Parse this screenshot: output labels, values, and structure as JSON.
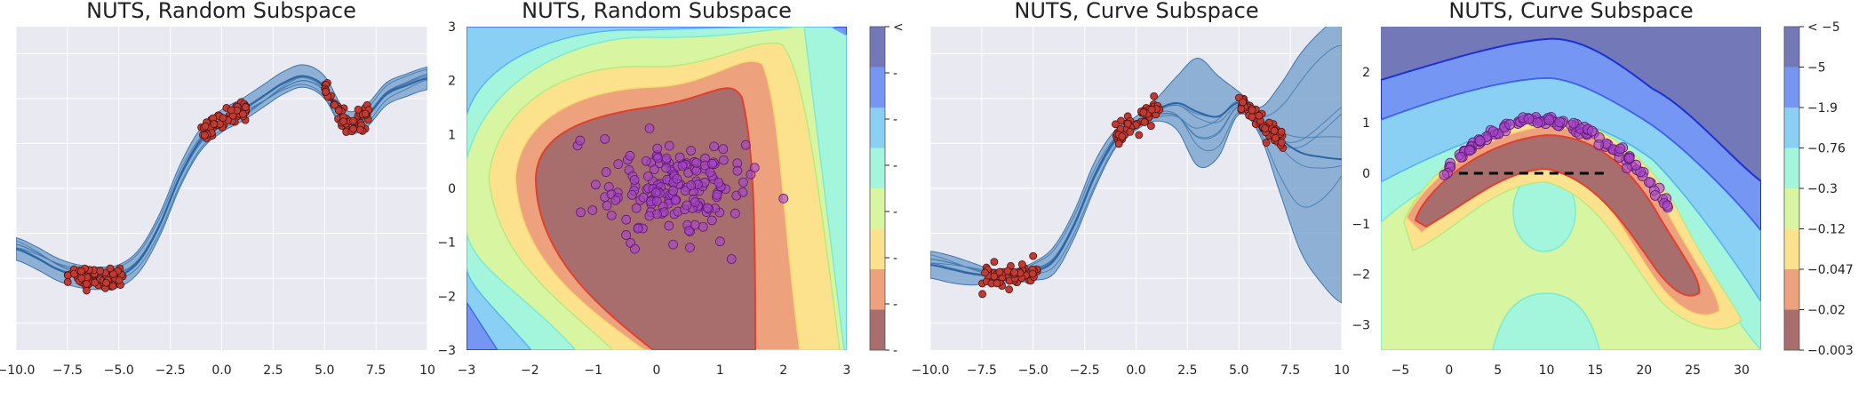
{
  "colors": {
    "axes_bg": "#e9e9f1",
    "grid": "#ffffff",
    "band": "#6d9cc9",
    "band_edge": "#3f76ad",
    "mean": "#2a66a5",
    "data_point": "#c23b32",
    "data_edge": "#4a1212",
    "sample_point": "#a543c7",
    "sample_edge": "#5e1a78",
    "level_colors": [
      "#a86e6e",
      "#eda27d",
      "#fce28c",
      "#d8f5a2",
      "#a3f5dc",
      "#8ad0f5",
      "#7597f3",
      "#7379b8"
    ],
    "level_edges": [
      "#e0402d",
      "#f08a5a",
      "#f6d86e",
      "#b7ea80",
      "#7fead0",
      "#5ab6ee",
      "#3f6af0",
      "#1b2fd6"
    ]
  },
  "chart_data": [
    {
      "type": "line",
      "title": "NUTS, Random Subspace",
      "xlim": [
        -10,
        10
      ],
      "xticks": [
        "−10.0",
        "−7.5",
        "−5.0",
        "−2.5",
        "0.0",
        "2.5",
        "5.0",
        "7.5",
        "10"
      ],
      "xtick_values": [
        -10,
        -7.5,
        -5,
        -2.5,
        0,
        2.5,
        5,
        7.5,
        10
      ],
      "ylim": [
        -3.6,
        3.6
      ],
      "mean_curve": {
        "x": [
          -10,
          -9,
          -8,
          -7,
          -6,
          -5,
          -4,
          -3,
          -2,
          -1,
          0,
          1,
          2,
          3,
          4,
          5,
          6,
          7,
          8,
          9,
          10
        ],
        "y": [
          -1.35,
          -1.55,
          -1.8,
          -1.95,
          -2.0,
          -1.95,
          -1.6,
          -0.8,
          0.3,
          1.1,
          1.5,
          1.75,
          2.05,
          2.35,
          2.5,
          2.25,
          1.5,
          1.6,
          2.1,
          2.3,
          2.45
        ]
      },
      "band_halfwidth": 0.25,
      "clusters": [
        {
          "x_range": [
            -7.5,
            -4.8
          ],
          "y_center": -2.0,
          "count": 70
        },
        {
          "x_range": [
            -1.0,
            1.2
          ],
          "y_center": 1.55,
          "count": 55
        },
        {
          "x_range": [
            5.0,
            7.2
          ],
          "y_center": 1.55,
          "count": 60
        }
      ]
    },
    {
      "type": "contour",
      "title": "NUTS, Random Subspace",
      "xlim": [
        -3,
        3
      ],
      "ylim": [
        -3,
        3
      ],
      "xticks": [
        "−3",
        "−2",
        "−1",
        "0",
        "1",
        "2",
        "3"
      ],
      "xtick_values": [
        -3,
        -2,
        -1,
        0,
        1,
        2,
        3
      ],
      "yticks": [
        "−3",
        "−2",
        "−1",
        "0",
        "1",
        "2",
        "3"
      ],
      "ytick_values": [
        -3,
        -2,
        -1,
        0,
        1,
        2,
        3
      ],
      "colorbar_labels": [
        "-",
        "-",
        "-",
        "-",
        "-",
        "-",
        "-",
        "<"
      ],
      "sample_count": 170,
      "sample_center": [
        0,
        0
      ],
      "sample_spread": 0.55
    },
    {
      "type": "line",
      "title": "NUTS, Curve Subspace",
      "xlim": [
        -10,
        10
      ],
      "xticks": [
        "−10.0",
        "−7.5",
        "−5.0",
        "−2.5",
        "0.0",
        "2.5",
        "5.0",
        "7.5",
        "10"
      ],
      "xtick_values": [
        -10,
        -7.5,
        -5,
        -2.5,
        0,
        2.5,
        5,
        7.5,
        10
      ],
      "ylim": [
        -3.6,
        3.6
      ],
      "mean_curve": {
        "x": [
          -10,
          -9,
          -8,
          -7,
          -6,
          -5,
          -4,
          -3,
          -2,
          -1,
          0,
          1,
          2,
          3,
          4,
          5,
          6,
          7,
          8,
          9,
          10
        ],
        "y": [
          -1.7,
          -1.8,
          -1.9,
          -1.95,
          -1.95,
          -1.85,
          -1.6,
          -0.8,
          0.3,
          1.1,
          1.45,
          1.75,
          1.9,
          1.7,
          1.6,
          1.9,
          1.5,
          1.1,
          0.8,
          0.7,
          0.65
        ]
      },
      "band_halfwidth_curve": [
        0.3,
        0.3,
        0.25,
        0.15,
        0.15,
        0.2,
        0.3,
        0.3,
        0.3,
        0.2,
        0.15,
        0.25,
        0.6,
        1.2,
        0.9,
        0.25,
        0.3,
        1.2,
        2.2,
        2.8,
        3.2
      ],
      "clusters": [
        {
          "x_range": [
            -7.5,
            -4.8
          ],
          "y_center": -1.95,
          "count": 70
        },
        {
          "x_range": [
            -1.0,
            1.2
          ],
          "y_center": 1.5,
          "count": 55
        },
        {
          "x_range": [
            5.0,
            7.2
          ],
          "y_center": 1.3,
          "count": 60
        }
      ]
    },
    {
      "type": "contour",
      "title": "NUTS, Curve Subspace",
      "xlim": [
        -7,
        32
      ],
      "ylim": [
        -3.5,
        2.9
      ],
      "xticks": [
        "−5",
        "0",
        "5",
        "10",
        "15",
        "20",
        "25",
        "30"
      ],
      "xtick_values": [
        -5,
        0,
        5,
        10,
        15,
        20,
        25,
        30
      ],
      "yticks": [
        "−3",
        "−2",
        "−1",
        "0",
        "1",
        "2"
      ],
      "ytick_values": [
        -3,
        -2,
        -1,
        0,
        1,
        2
      ],
      "colorbar_labels": [
        "−0.003",
        "−0.02",
        "−0.047",
        "−0.12",
        "−0.3",
        "−0.76",
        "−1.9",
        "−5",
        "< −5"
      ],
      "dashed_segment": {
        "x": [
          1,
          16
        ],
        "y": 0
      },
      "sample_count": 110
    }
  ]
}
